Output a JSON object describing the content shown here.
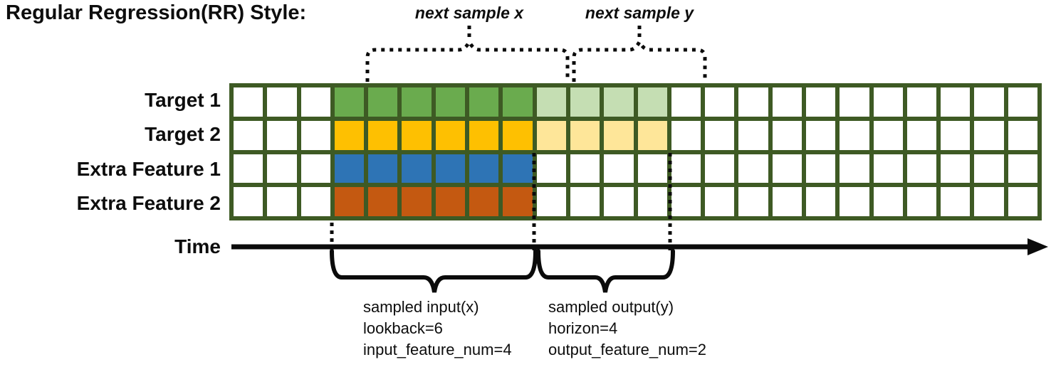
{
  "title": "Regular Regression(RR) Style:",
  "annotations": {
    "next_sample_x": "next sample x",
    "next_sample_y": "next sample y",
    "time_label": "Time",
    "input_block": {
      "line1": "sampled input(x)",
      "line2": "lookback=6",
      "line3": "input_feature_num=4"
    },
    "output_block": {
      "line1": "sampled output(y)",
      "line2": "horizon=4",
      "line3": "output_feature_num=2"
    }
  },
  "grid": {
    "columns": 24,
    "row_count": 4,
    "input_start_col": 3,
    "lookback": 6,
    "horizon": 4,
    "border_color": "#3e5a24",
    "empty_color": "#ffffff"
  },
  "rows": [
    {
      "label": "Target 1",
      "solid_color": "#6aab4e",
      "light_color": "#c5deb3",
      "has_horizon": true
    },
    {
      "label": "Target 2",
      "solid_color": "#fec001",
      "light_color": "#fee699",
      "has_horizon": true
    },
    {
      "label": "Extra Feature 1",
      "solid_color": "#2e74b5",
      "light_color": null,
      "has_horizon": false
    },
    {
      "label": "Extra Feature 2",
      "solid_color": "#c45911",
      "light_color": null,
      "has_horizon": false
    }
  ],
  "colors": {
    "line_black": "#0b0b0b"
  }
}
